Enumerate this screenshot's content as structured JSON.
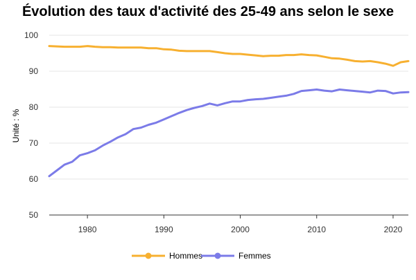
{
  "chart_data": {
    "type": "line",
    "title": "Évolution des taux d'activité des 25-49 ans selon le sexe",
    "xlabel": "",
    "ylabel": "Unité : %",
    "xlim": [
      1975,
      2022
    ],
    "ylim": [
      50,
      100
    ],
    "x_ticks": [
      "1980",
      "1990",
      "2000",
      "2010",
      "2020"
    ],
    "y_ticks": [
      "50",
      "60",
      "70",
      "80",
      "90",
      "100"
    ],
    "grid": true,
    "legend_position": "bottom",
    "x": [
      1975,
      1976,
      1977,
      1978,
      1979,
      1980,
      1981,
      1982,
      1983,
      1984,
      1985,
      1986,
      1987,
      1988,
      1989,
      1990,
      1991,
      1992,
      1993,
      1994,
      1995,
      1996,
      1997,
      1998,
      1999,
      2000,
      2001,
      2002,
      2003,
      2004,
      2005,
      2006,
      2007,
      2008,
      2009,
      2010,
      2011,
      2012,
      2013,
      2014,
      2015,
      2016,
      2017,
      2018,
      2019,
      2020,
      2021,
      2022
    ],
    "series": [
      {
        "name": "Hommes",
        "color": "#f7b030",
        "values": [
          97.0,
          96.9,
          96.8,
          96.8,
          96.8,
          97.0,
          96.8,
          96.7,
          96.7,
          96.6,
          96.6,
          96.6,
          96.6,
          96.4,
          96.4,
          96.1,
          96.0,
          95.7,
          95.6,
          95.6,
          95.6,
          95.6,
          95.3,
          95.0,
          94.8,
          94.8,
          94.6,
          94.4,
          94.2,
          94.3,
          94.3,
          94.5,
          94.5,
          94.7,
          94.5,
          94.4,
          94.0,
          93.6,
          93.5,
          93.2,
          92.8,
          92.7,
          92.8,
          92.5,
          92.1,
          91.5,
          92.5,
          92.8
        ]
      },
      {
        "name": "Femmes",
        "color": "#7b7be8",
        "values": [
          60.8,
          62.4,
          64.0,
          64.8,
          66.6,
          67.2,
          68.0,
          69.3,
          70.4,
          71.6,
          72.5,
          73.9,
          74.3,
          75.1,
          75.7,
          76.6,
          77.5,
          78.4,
          79.2,
          79.8,
          80.3,
          81.0,
          80.5,
          81.1,
          81.6,
          81.6,
          82.0,
          82.2,
          82.3,
          82.6,
          82.9,
          83.2,
          83.7,
          84.5,
          84.7,
          84.9,
          84.6,
          84.4,
          84.9,
          84.7,
          84.5,
          84.3,
          84.1,
          84.6,
          84.5,
          83.8,
          84.1,
          84.2
        ]
      }
    ]
  }
}
